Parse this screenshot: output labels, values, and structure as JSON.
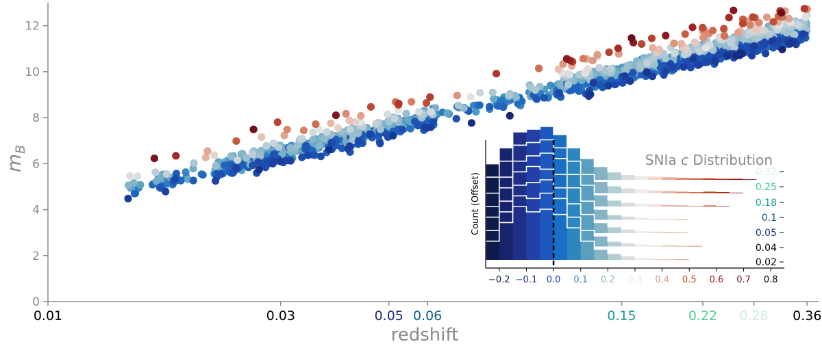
{
  "chart_data": [
    {
      "type": "scatter",
      "title": "",
      "xlabel": "redshift",
      "ylabel": "m_B",
      "ylabel_main": "m",
      "ylabel_sub": "B",
      "xscale": "log",
      "xlim": [
        0.01,
        0.38
      ],
      "ylim": [
        0,
        13
      ],
      "yticks": [
        0,
        2,
        4,
        6,
        8,
        10,
        12
      ],
      "xticks": [
        {
          "label": "0.01",
          "value": 0.01,
          "color": "#000000"
        },
        {
          "label": "0.03",
          "value": 0.03,
          "color": "#000000"
        },
        {
          "label": "0.05",
          "value": 0.05,
          "color": "#1b2a7a"
        },
        {
          "label": "0.06",
          "value": 0.06,
          "color": "#0f5e8e"
        },
        {
          "label": "0.15",
          "value": 0.15,
          "color": "#1a9a96"
        },
        {
          "label": "0.22",
          "value": 0.22,
          "color": "#55d08c"
        },
        {
          "label": "0.28",
          "value": 0.28,
          "color": "#cdeee0"
        },
        {
          "label": "0.36",
          "value": 0.36,
          "color": "#000000"
        }
      ],
      "color_encoding": "SNIa color c (blue = negative, red = positive)",
      "trend": {
        "slope_per_decade": 5.0,
        "anchor_z": 0.1,
        "anchor_m": 9.0
      },
      "series": [
        {
          "x": [
            0.0145,
            0.0158,
            0.0171,
            0.0186,
            0.0203,
            0.0221,
            0.0242,
            0.0265,
            0.029,
            0.0318,
            0.0348,
            0.038,
            0.0416,
            0.0455,
            0.0498,
            0.0545,
            0.0596,
            0.0652,
            0.0713,
            0.078,
            0.0853,
            0.0933,
            0.102,
            0.1116,
            0.1221,
            0.1335,
            0.146,
            0.1597,
            0.1747,
            0.1911,
            0.209,
            0.2286,
            0.25,
            0.2734,
            0.299,
            0.3271,
            0.355
          ],
          "y": [
            4.0,
            4.4,
            4.8,
            5.0,
            5.2,
            5.5,
            5.7,
            6.0,
            6.1,
            6.3,
            6.5,
            6.7,
            6.9,
            7.1,
            7.2,
            7.4,
            7.6,
            7.8,
            8.0,
            8.2,
            8.4,
            8.6,
            8.8,
            9.0,
            9.2,
            9.4,
            9.6,
            9.8,
            10.0,
            10.2,
            10.4,
            10.6,
            10.8,
            11.0,
            11.2,
            11.4,
            11.6
          ]
        }
      ]
    },
    {
      "type": "bar",
      "title": "SNIa c Distribution",
      "title_prefix": "SNIa",
      "title_symbol": "c",
      "title_suffix": "Distribution",
      "ylabel": "Count (Offset)",
      "xlim": [
        -0.25,
        0.85
      ],
      "xticks": [
        {
          "label": "−0.2",
          "value": -0.2,
          "color": "#0d1b4a"
        },
        {
          "label": "−0.1",
          "value": -0.1,
          "color": "#1f2f88"
        },
        {
          "label": "0.0",
          "value": 0.0,
          "color": "#1446b8"
        },
        {
          "label": "0.1",
          "value": 0.1,
          "color": "#2d7fb8"
        },
        {
          "label": "0.2",
          "value": 0.2,
          "color": "#86b4c4"
        },
        {
          "label": "0.3",
          "value": 0.3,
          "color": "#e8e8e8"
        },
        {
          "label": "0.4",
          "value": 0.4,
          "color": "#e39a86"
        },
        {
          "label": "0.5",
          "value": 0.5,
          "color": "#c0461e"
        },
        {
          "label": "0.6",
          "value": 0.6,
          "color": "#9b1c1c"
        },
        {
          "label": "0.7",
          "value": 0.7,
          "color": "#6e0a1e"
        },
        {
          "label": "0.8",
          "value": 0.8,
          "color": "#000000"
        }
      ],
      "reference_line": 0.0,
      "rows": [
        {
          "label": "0.32",
          "color": "#e0f2ee"
        },
        {
          "label": "0.25",
          "color": "#3fcc8a"
        },
        {
          "label": "0.18",
          "color": "#14a090"
        },
        {
          "label": "0.1",
          "color": "#0b5e8e"
        },
        {
          "label": "0.05",
          "color": "#1b2a7a"
        },
        {
          "label": "0.04",
          "color": "#000000"
        },
        {
          "label": "0.02",
          "color": "#000000"
        }
      ],
      "bin_edges": [
        -0.25,
        -0.2,
        -0.15,
        -0.1,
        -0.05,
        0.0,
        0.05,
        0.1,
        0.15,
        0.2,
        0.25,
        0.3,
        0.35,
        0.4,
        0.45,
        0.5,
        0.55,
        0.6,
        0.65,
        0.7,
        0.75,
        0.8
      ],
      "bin_colors": [
        "#0d1b4a",
        "#16256b",
        "#1f2f88",
        "#2140a8",
        "#1d58bf",
        "#1a6fc4",
        "#2d86bd",
        "#5a9fc0",
        "#86b4c4",
        "#b3cdd5",
        "#dcdcdc",
        "#ececec",
        "#f0d8cf",
        "#e8b3a2",
        "#dd8d74",
        "#cf6a4c",
        "#c0461e",
        "#a82a1f",
        "#8f1a1f",
        "#6e0a1e",
        "#55001b"
      ],
      "histograms": [
        [
          0.35,
          0.7,
          1.0,
          0.9,
          0.95,
          0.85,
          0.6,
          0.35,
          0.2,
          0.12,
          0.08,
          0.05,
          0.03,
          0.02,
          0.02,
          0.01,
          0.01,
          0.0,
          0.0,
          0.0,
          0.0
        ],
        [
          0.3,
          0.65,
          0.95,
          0.9,
          1.0,
          0.9,
          0.55,
          0.3,
          0.2,
          0.1,
          0.07,
          0.05,
          0.03,
          0.03,
          0.02,
          0.02,
          0.01,
          0.01,
          0.0,
          0.0,
          0.0
        ],
        [
          0.3,
          0.6,
          0.9,
          0.95,
          1.0,
          0.85,
          0.55,
          0.35,
          0.2,
          0.12,
          0.08,
          0.05,
          0.04,
          0.03,
          0.02,
          0.01,
          0.01,
          0.01,
          0.0,
          0.0,
          0.0
        ],
        [
          0.25,
          0.6,
          0.9,
          1.0,
          0.95,
          0.85,
          0.6,
          0.35,
          0.2,
          0.1,
          0.07,
          0.05,
          0.03,
          0.02,
          0.02,
          0.01,
          0.01,
          0.0,
          0.0,
          0.0,
          0.0
        ],
        [
          0.25,
          0.55,
          0.85,
          0.95,
          1.0,
          0.9,
          0.6,
          0.4,
          0.22,
          0.12,
          0.08,
          0.06,
          0.05,
          0.04,
          0.03,
          0.02,
          0.03,
          0.02,
          0.01,
          0.0,
          0.0
        ],
        [
          0.3,
          0.6,
          0.9,
          0.95,
          1.0,
          0.85,
          0.6,
          0.35,
          0.22,
          0.14,
          0.1,
          0.08,
          0.06,
          0.05,
          0.04,
          0.03,
          0.04,
          0.03,
          0.02,
          0.01,
          0.0
        ],
        [
          0.3,
          0.6,
          0.9,
          0.95,
          1.0,
          0.85,
          0.6,
          0.4,
          0.25,
          0.15,
          0.1,
          0.08,
          0.07,
          0.06,
          0.05,
          0.04,
          0.04,
          0.03,
          0.03,
          0.02,
          0.01
        ]
      ]
    }
  ]
}
